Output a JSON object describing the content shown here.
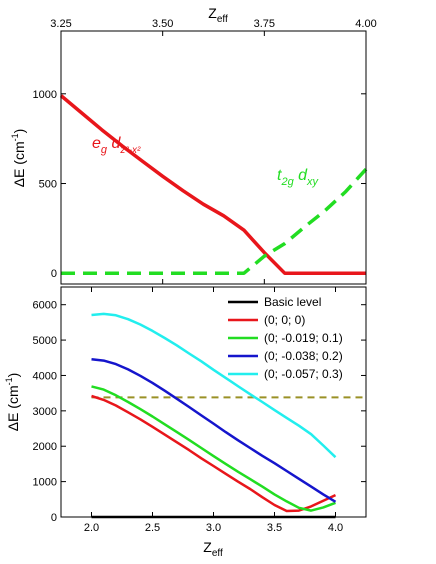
{
  "chart_data": [
    {
      "type": "line",
      "panel": "top",
      "xlabel": "Z",
      "xlabel_sub": "eff",
      "ylabel": "ΔE (cm",
      "ylabel_sup": "-1",
      "ylabel_end": ")",
      "xlim": [
        3.25,
        4.0
      ],
      "ylim": [
        -60,
        1350
      ],
      "x_ticks": [
        "3.25",
        "3.50",
        "3.75",
        "4.00"
      ],
      "x_tick_values": [
        3.25,
        3.5,
        3.75,
        4.0
      ],
      "y_ticks": [
        "0",
        "500",
        "1000"
      ],
      "y_tick_values": [
        0,
        500,
        1000
      ],
      "x_axis_position": "top",
      "grid": false,
      "series": [
        {
          "color": "#e8161b",
          "style": "solid",
          "x": [
            3.25,
            3.3,
            3.35,
            3.4,
            3.45,
            3.5,
            3.55,
            3.6,
            3.65,
            3.7,
            3.75,
            3.8,
            3.85,
            3.9,
            3.95,
            4.0
          ],
          "values": [
            990,
            895,
            800,
            710,
            625,
            540,
            460,
            385,
            320,
            240,
            115,
            0,
            0,
            0,
            0,
            0
          ]
        },
        {
          "color": "#22dd22",
          "style": "dashed",
          "x": [
            3.25,
            3.3,
            3.35,
            3.4,
            3.45,
            3.5,
            3.55,
            3.6,
            3.65,
            3.7,
            3.75,
            3.8,
            3.85,
            3.9,
            3.95,
            4.0
          ],
          "values": [
            0,
            0,
            0,
            0,
            0,
            0,
            0,
            0,
            0,
            0,
            95,
            165,
            260,
            350,
            455,
            580
          ]
        }
      ],
      "annotations": [
        {
          "base": "e",
          "sub": "g",
          "base2": " d",
          "sub2": "z²-x²",
          "color": "#e8161b",
          "at": "upper-left"
        },
        {
          "base": "t",
          "sub": "2g",
          "base2": " d",
          "sub2": "xy",
          "color": "#22dd22",
          "at": "right-middle"
        }
      ]
    },
    {
      "type": "line",
      "panel": "bottom",
      "xlabel": "Z",
      "xlabel_sub": "eff",
      "ylabel": "ΔE (cm",
      "ylabel_sup": "-1",
      "ylabel_end": ")",
      "xlim": [
        1.75,
        4.25
      ],
      "ylim": [
        0,
        6500
      ],
      "x_ticks": [
        "2.0",
        "2.5",
        "3.0",
        "3.5",
        "4.0"
      ],
      "x_tick_values": [
        2.0,
        2.5,
        3.0,
        3.5,
        4.0
      ],
      "y_ticks": [
        "0",
        "1000",
        "2000",
        "3000",
        "4000",
        "5000",
        "6000"
      ],
      "y_tick_values": [
        0,
        1000,
        2000,
        3000,
        4000,
        5000,
        6000
      ],
      "grid": false,
      "legend_placement": "top-right",
      "reference_line": {
        "value": 3380,
        "color": "#9a9126",
        "style": "dashed"
      },
      "series": [
        {
          "name": "Basic level",
          "color": "#000000",
          "x": [
            2.0,
            2.5,
            3.0,
            3.5,
            4.0
          ],
          "values": [
            0,
            0,
            0,
            0,
            0
          ]
        },
        {
          "name": "(0; 0; 0)",
          "color": "#e8161b",
          "x": [
            2.0,
            2.1,
            2.2,
            2.3,
            2.4,
            2.5,
            2.6,
            2.7,
            2.8,
            2.9,
            3.0,
            3.1,
            3.2,
            3.3,
            3.4,
            3.5,
            3.6,
            3.7,
            3.8,
            3.9,
            4.0
          ],
          "values": [
            3420,
            3310,
            3150,
            2960,
            2760,
            2550,
            2330,
            2110,
            1890,
            1660,
            1440,
            1220,
            1000,
            790,
            560,
            340,
            170,
            180,
            300,
            460,
            620
          ]
        },
        {
          "name": "(0; -0.019; 0.1)",
          "color": "#22dd22",
          "x": [
            2.0,
            2.1,
            2.2,
            2.3,
            2.4,
            2.5,
            2.6,
            2.7,
            2.8,
            2.9,
            3.0,
            3.1,
            3.2,
            3.3,
            3.4,
            3.5,
            3.6,
            3.7,
            3.8,
            3.9,
            4.0
          ],
          "values": [
            3690,
            3600,
            3440,
            3250,
            3050,
            2840,
            2620,
            2400,
            2180,
            1950,
            1720,
            1500,
            1280,
            1070,
            860,
            640,
            440,
            260,
            180,
            270,
            400
          ]
        },
        {
          "name": "(0; -0.038; 0.2)",
          "color": "#1515cc",
          "x": [
            2.0,
            2.1,
            2.2,
            2.3,
            2.4,
            2.5,
            2.6,
            2.7,
            2.8,
            2.9,
            3.0,
            3.1,
            3.2,
            3.3,
            3.4,
            3.5,
            3.6,
            3.7,
            3.8,
            3.9,
            4.0
          ],
          "values": [
            4460,
            4420,
            4320,
            4170,
            3990,
            3790,
            3570,
            3340,
            3110,
            2870,
            2640,
            2400,
            2170,
            1950,
            1730,
            1520,
            1300,
            1080,
            860,
            640,
            430
          ]
        },
        {
          "name": "(0; -0.057; 0.3)",
          "color": "#22eeee",
          "x": [
            2.0,
            2.1,
            2.2,
            2.3,
            2.4,
            2.5,
            2.6,
            2.7,
            2.8,
            2.9,
            3.0,
            3.1,
            3.2,
            3.3,
            3.4,
            3.5,
            3.6,
            3.7,
            3.8,
            3.9,
            4.0
          ],
          "values": [
            5710,
            5740,
            5700,
            5590,
            5440,
            5260,
            5060,
            4850,
            4620,
            4400,
            4160,
            3930,
            3700,
            3470,
            3250,
            3020,
            2800,
            2580,
            2340,
            2020,
            1690
          ]
        }
      ]
    }
  ]
}
